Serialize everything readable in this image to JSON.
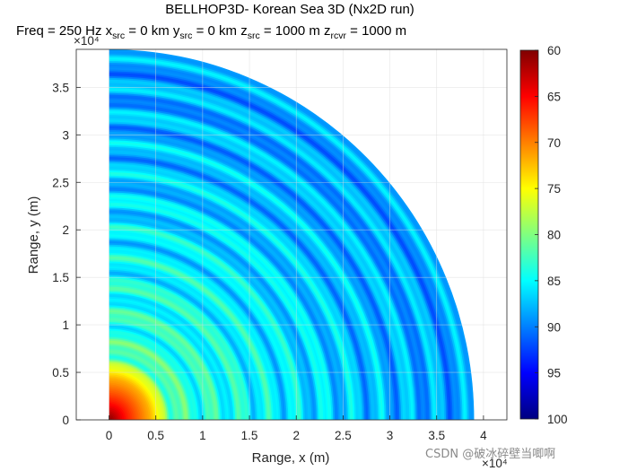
{
  "title": {
    "line1": "BELLHOP3D- Korean Sea 3D (Nx2D run)",
    "line2": [
      {
        "text": "Freq = 250 Hz    x"
      },
      {
        "sub": "src"
      },
      {
        "text": " = 0 km    y"
      },
      {
        "sub": "src"
      },
      {
        "text": " = 0 km    z"
      },
      {
        "sub": "src"
      },
      {
        "text": " = 1000 m      z"
      },
      {
        "sub": "rcvr"
      },
      {
        "text": " = 1000 m"
      }
    ]
  },
  "watermark": "CSDN @破冰碎壁当唧啊",
  "chart_data": {
    "type": "heatmap",
    "description_of_field": "transmission loss (dB) over a quarter-disc of range",
    "xlabel": "Range, x (m)",
    "ylabel": "Range, y (m)",
    "x_exponent_label": "×10⁴",
    "y_exponent_label": "×10⁴",
    "xlim": [
      -0.35,
      4.25
    ],
    "ylim": [
      0,
      3.9
    ],
    "x_scale": 10000,
    "y_scale": 10000,
    "xticks": [
      0,
      0.5,
      1,
      1.5,
      2,
      2.5,
      3,
      3.5,
      4
    ],
    "xtick_labels": [
      "0",
      "0.5",
      "1",
      "1.5",
      "2",
      "2.5",
      "3",
      "3.5",
      "4"
    ],
    "yticks": [
      0,
      0.5,
      1,
      1.5,
      2,
      2.5,
      3,
      3.5
    ],
    "ytick_labels": [
      "0",
      "0.5",
      "1",
      "1.5",
      "2",
      "2.5",
      "3",
      "3.5"
    ],
    "grid": true,
    "field_extent_radius": 3.9,
    "source_position": [
      0,
      0
    ],
    "colorbar": {
      "min": 60,
      "max": 100,
      "reversed": true,
      "colormap": "jet",
      "ticks": [
        60,
        65,
        70,
        75,
        80,
        85,
        90,
        95,
        100
      ],
      "tick_labels": [
        "60",
        "65",
        "70",
        "75",
        "80",
        "85",
        "90",
        "95",
        "100"
      ]
    },
    "radial_profile": [
      {
        "r": 0.0,
        "tl": 60
      },
      {
        "r": 0.2,
        "tl": 66
      },
      {
        "r": 0.45,
        "tl": 72
      },
      {
        "r": 0.65,
        "tl": 80
      },
      {
        "r": 0.8,
        "tl": 83
      },
      {
        "r": 1.2,
        "tl": 84
      },
      {
        "r": 2.0,
        "tl": 86
      },
      {
        "r": 3.0,
        "tl": 88
      },
      {
        "r": 3.9,
        "tl": 89
      }
    ]
  },
  "colors": {
    "axes": "#262626",
    "grid": "#dcdcdc",
    "background": "#ffffff"
  }
}
